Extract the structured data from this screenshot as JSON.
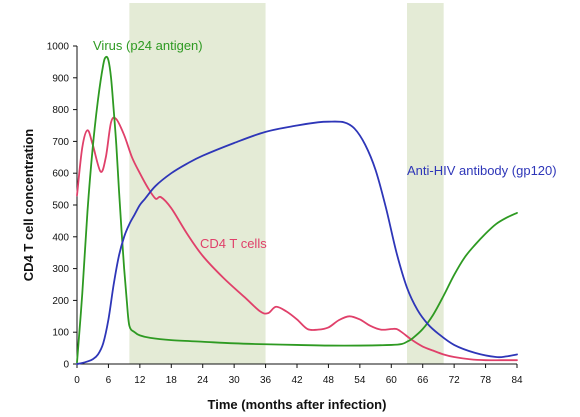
{
  "chart_data": {
    "type": "line",
    "xlabel": "Time (months after infection)",
    "ylabel": "CD4 T cell concentration",
    "xlim": [
      0,
      84
    ],
    "ylim": [
      0,
      1000
    ],
    "xticks": [
      "0",
      "6",
      "12",
      "18",
      "24",
      "30",
      "36",
      "42",
      "48",
      "54",
      "60",
      "66",
      "72",
      "78",
      "84"
    ],
    "yticks": [
      "0",
      "100",
      "200",
      "300",
      "400",
      "500",
      "600",
      "700",
      "800",
      "900",
      "1000"
    ],
    "shaded_regions": [
      {
        "x_start": 10,
        "x_end": 36
      },
      {
        "x_start": 63,
        "x_end": 70
      }
    ],
    "series": [
      {
        "name": "CD4 T cells",
        "color": "#e0406a",
        "x": [
          0,
          1,
          2,
          3,
          4.5,
          5.5,
          6.5,
          7.5,
          9,
          10.5,
          12,
          13.5,
          15,
          16,
          18,
          21,
          24,
          28,
          32,
          35,
          36.5,
          38,
          40,
          42,
          44,
          46,
          48,
          50,
          52,
          54,
          56,
          58,
          60,
          61,
          62,
          64,
          66,
          68,
          70,
          72,
          75,
          78,
          81,
          84
        ],
        "y": [
          530,
          680,
          735,
          690,
          605,
          650,
          760,
          770,
          720,
          650,
          600,
          555,
          520,
          525,
          490,
          410,
          340,
          270,
          210,
          165,
          160,
          180,
          165,
          140,
          110,
          108,
          115,
          138,
          150,
          140,
          120,
          108,
          110,
          110,
          100,
          75,
          55,
          42,
          30,
          22,
          15,
          12,
          12,
          12
        ]
      },
      {
        "name": "Virus (p24 antigen)",
        "color": "#2e9a22",
        "x": [
          0,
          1,
          2,
          3,
          4,
          5,
          5.5,
          6,
          6.5,
          7,
          7.5,
          8,
          8.5,
          9,
          9.5,
          10,
          11,
          12,
          14,
          18,
          24,
          30,
          36,
          42,
          48,
          54,
          60,
          62,
          63,
          64,
          66,
          68,
          70,
          72,
          74,
          76,
          78,
          80,
          82,
          84
        ],
        "y": [
          5,
          220,
          480,
          680,
          830,
          940,
          965,
          955,
          900,
          800,
          690,
          550,
          420,
          300,
          200,
          120,
          100,
          90,
          82,
          75,
          70,
          65,
          62,
          60,
          58,
          58,
          60,
          63,
          70,
          80,
          110,
          155,
          215,
          280,
          335,
          375,
          410,
          440,
          460,
          475
        ]
      },
      {
        "name": "Anti-HIV antibody (gp120)",
        "color": "#2e36b8",
        "x": [
          0,
          1,
          2,
          3,
          4,
          5,
          6,
          7,
          8,
          9,
          10,
          11,
          12,
          13,
          15,
          18,
          21,
          24,
          30,
          36,
          42,
          46,
          48,
          51,
          53,
          55,
          57,
          59,
          61,
          63,
          65,
          67,
          69,
          72,
          76,
          80,
          82,
          84
        ],
        "y": [
          0,
          3,
          8,
          15,
          30,
          65,
          140,
          250,
          340,
          400,
          440,
          470,
          500,
          520,
          560,
          600,
          630,
          655,
          695,
          730,
          750,
          760,
          762,
          760,
          740,
          690,
          610,
          490,
          350,
          240,
          170,
          125,
          95,
          60,
          35,
          22,
          24,
          30
        ]
      }
    ]
  }
}
